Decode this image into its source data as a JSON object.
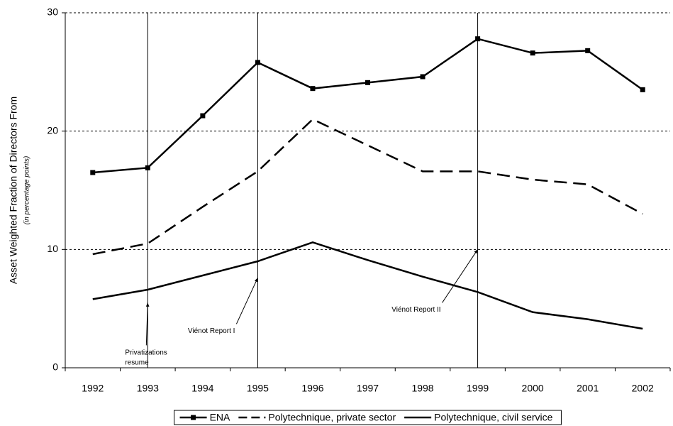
{
  "chart_data": {
    "type": "line",
    "y_label": "Asset Weighted Fraction of Directors From",
    "y_sublabel": "(in percentage points)",
    "categories": [
      "1992",
      "1993",
      "1994",
      "1995",
      "1996",
      "1997",
      "1998",
      "1999",
      "2000",
      "2001",
      "2002"
    ],
    "series": [
      {
        "name": "ENA",
        "color": "#000000",
        "line_style": "solid",
        "marker": "square",
        "values": [
          16.5,
          16.9,
          21.3,
          25.8,
          23.6,
          24.1,
          24.6,
          27.8,
          26.6,
          26.8,
          23.5
        ]
      },
      {
        "name": "Polytechnique, private sector",
        "color": "#000000",
        "line_style": "dashed",
        "marker": "none",
        "values": [
          9.6,
          10.5,
          13.6,
          16.6,
          21.0,
          18.8,
          16.6,
          16.6,
          15.9,
          15.5,
          13.0
        ]
      },
      {
        "name": "Polytechnique, civil service",
        "color": "#000000",
        "line_style": "solid",
        "marker": "none",
        "values": [
          5.8,
          6.6,
          7.8,
          9.0,
          10.6,
          9.1,
          7.7,
          6.4,
          4.7,
          4.1,
          3.3
        ]
      }
    ],
    "ylim": [
      0,
      30
    ],
    "yticks": [
      0,
      10,
      20,
      30
    ],
    "grid": true,
    "legend": "bottom",
    "annotations": [
      {
        "text": "Privatizations resume",
        "x": "1993",
        "y": 5.5
      },
      {
        "text": "Viénot Report I",
        "x": "1995",
        "y": 7.6
      },
      {
        "text": "Viénot Report II",
        "x": "1999",
        "y": 10
      }
    ]
  }
}
